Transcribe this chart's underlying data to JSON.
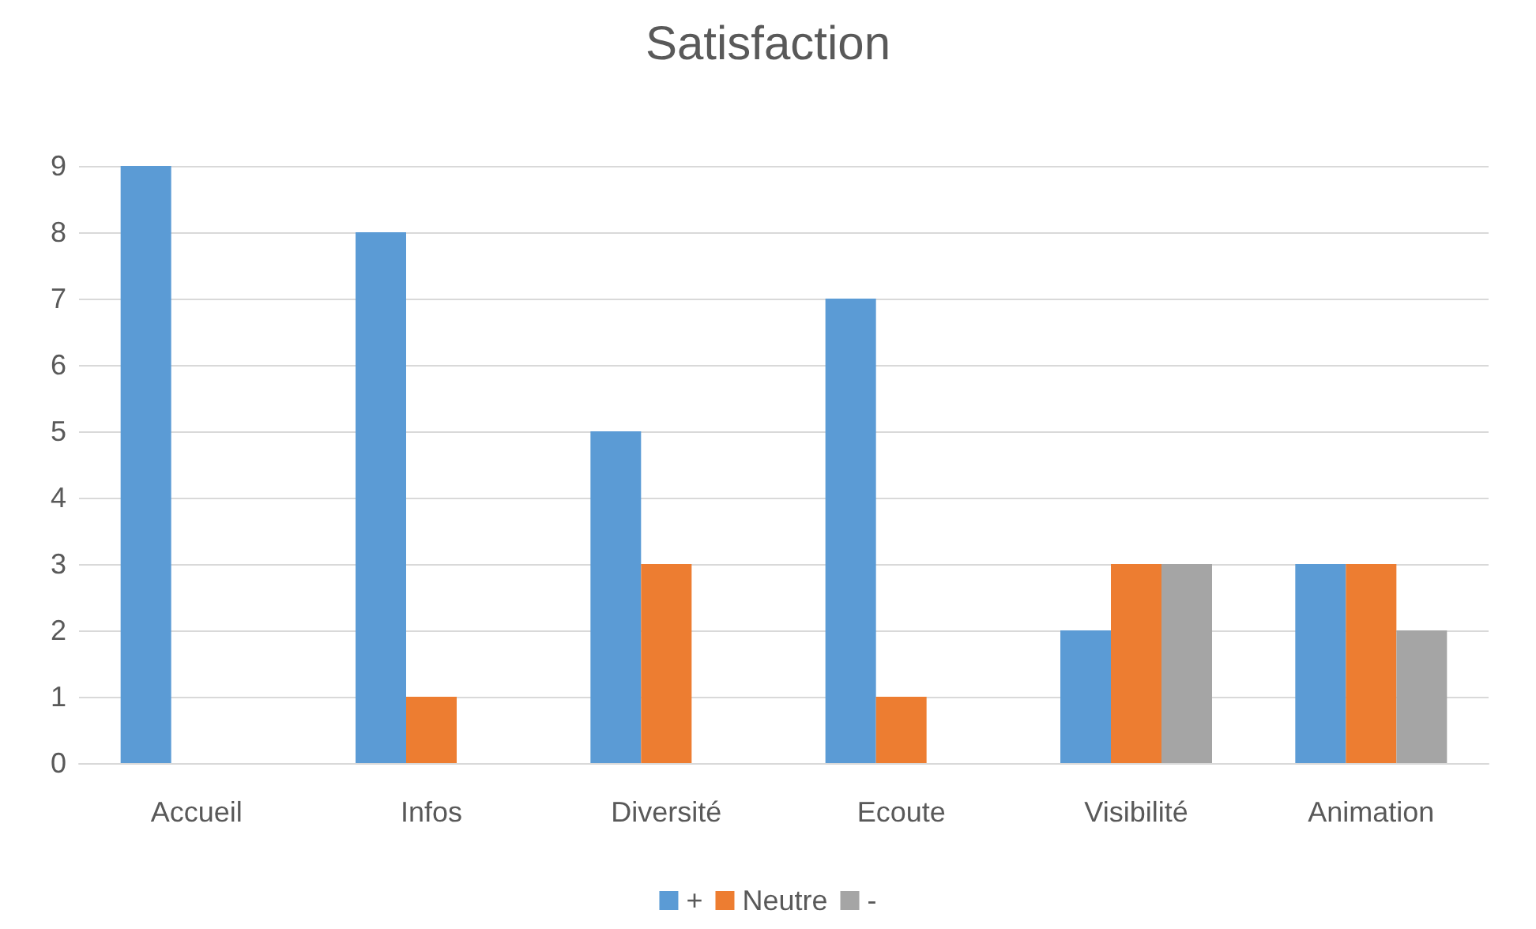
{
  "chart_data": {
    "type": "bar",
    "title": "Satisfaction",
    "categories": [
      "Accueil",
      "Infos",
      "Diversité",
      "Ecoute",
      "Visibilité",
      "Animation"
    ],
    "series": [
      {
        "name": "+",
        "color": "#5b9bd5",
        "values": [
          9,
          8,
          5,
          7,
          2,
          3
        ]
      },
      {
        "name": "Neutre",
        "color": "#ed7d31",
        "values": [
          0,
          1,
          3,
          1,
          3,
          3
        ]
      },
      {
        "name": "-",
        "color": "#a5a5a5",
        "values": [
          0,
          0,
          0,
          0,
          3,
          2
        ]
      }
    ],
    "ylim": [
      0,
      9
    ],
    "yticks": [
      0,
      1,
      2,
      3,
      4,
      5,
      6,
      7,
      8,
      9
    ],
    "grid": "y",
    "legend": "bottom"
  }
}
